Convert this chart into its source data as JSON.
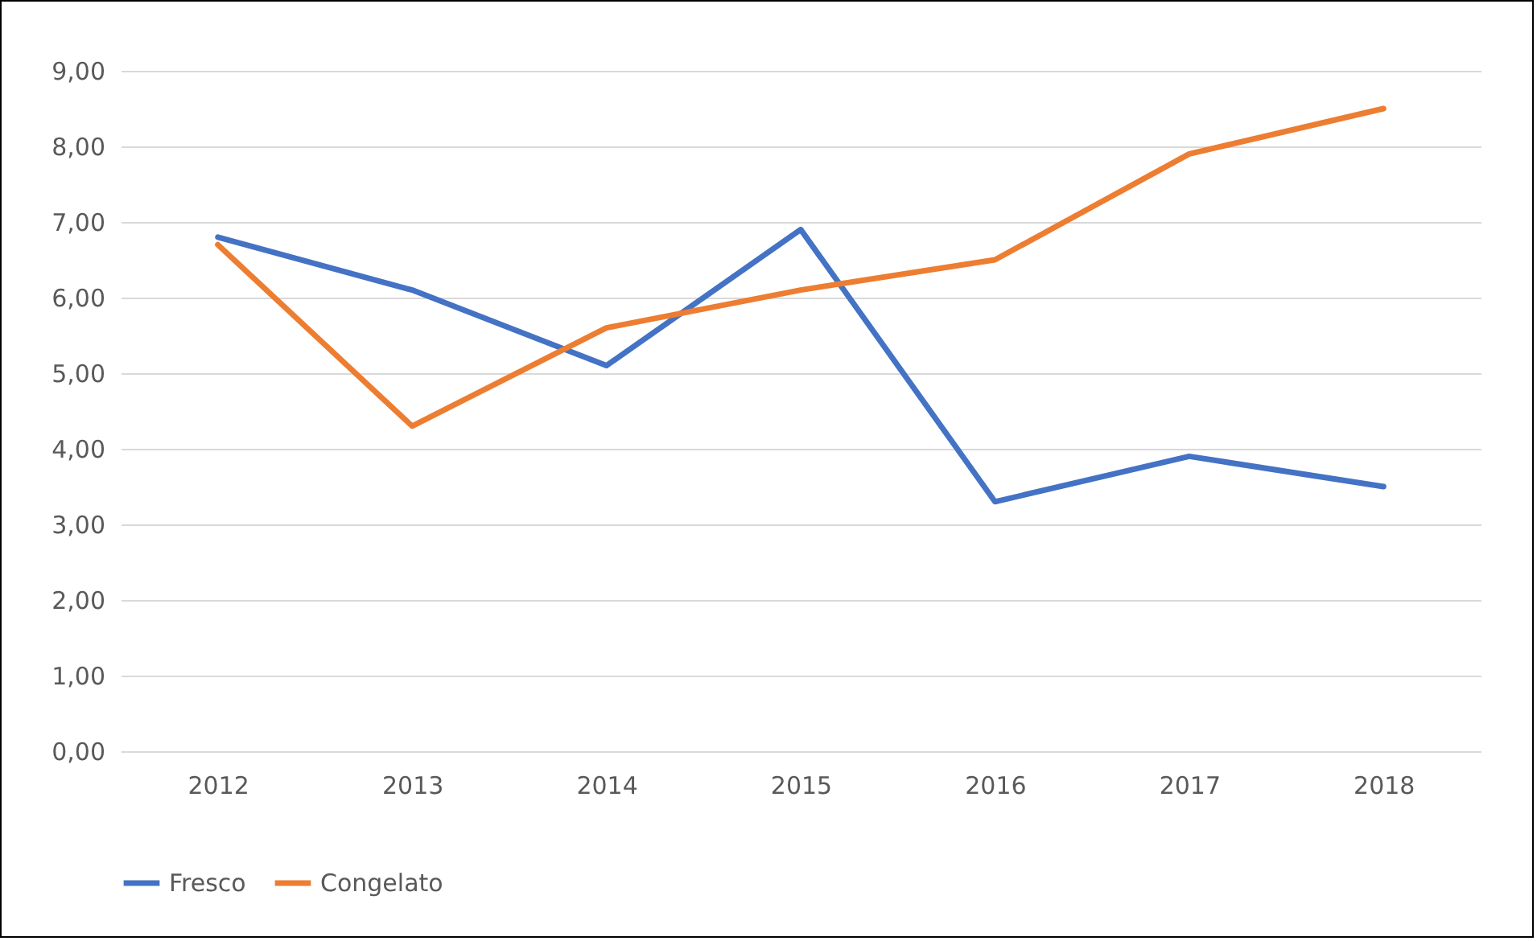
{
  "chart_data": {
    "type": "line",
    "categories": [
      "2012",
      "2013",
      "2014",
      "2015",
      "2016",
      "2017",
      "2018"
    ],
    "series": [
      {
        "name": "Fresco",
        "color": "#4472c4",
        "values": [
          6.8,
          6.1,
          5.1,
          6.9,
          3.3,
          3.9,
          3.5
        ]
      },
      {
        "name": "Congelato",
        "color": "#ed7d31",
        "values": [
          6.7,
          4.3,
          5.6,
          6.1,
          6.5,
          7.9,
          8.5
        ]
      }
    ],
    "ylim": [
      0,
      9
    ],
    "yticks": [
      {
        "value": 0,
        "label": "0,00"
      },
      {
        "value": 1,
        "label": "1,00"
      },
      {
        "value": 2,
        "label": "2,00"
      },
      {
        "value": 3,
        "label": "3,00"
      },
      {
        "value": 4,
        "label": "4,00"
      },
      {
        "value": 5,
        "label": "5,00"
      },
      {
        "value": 6,
        "label": "6,00"
      },
      {
        "value": 7,
        "label": "7,00"
      },
      {
        "value": 8,
        "label": "8,00"
      },
      {
        "value": 9,
        "label": "9,00"
      }
    ],
    "grid": "y",
    "legend": "bottom"
  }
}
